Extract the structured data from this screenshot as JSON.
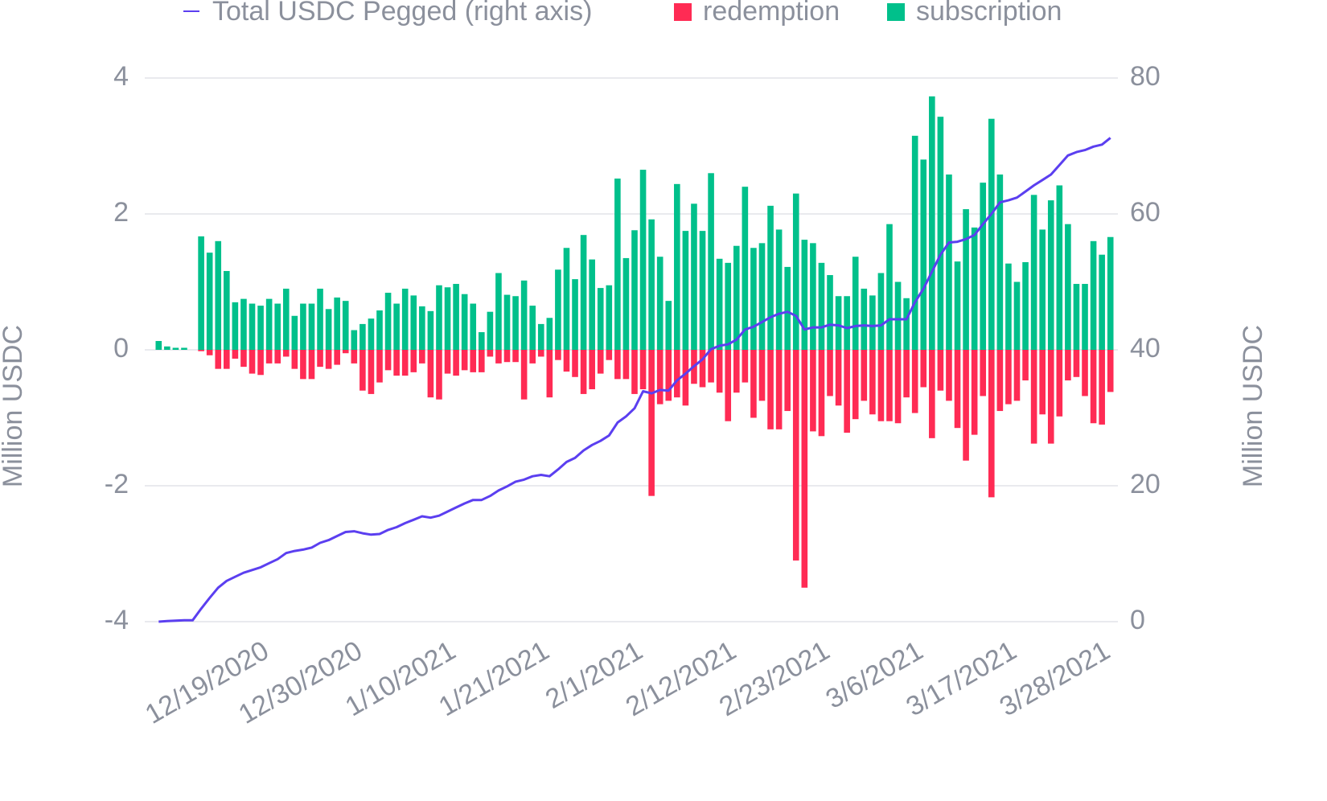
{
  "chart_data": {
    "type": "bar",
    "y_label": "Million USDC",
    "y2_label": "Million USDC",
    "ylim": [
      -4,
      4
    ],
    "yticks": [
      -4,
      -2,
      0,
      2,
      4
    ],
    "y2lim": [
      0,
      80
    ],
    "y2ticks": [
      0,
      20,
      40,
      60,
      80
    ],
    "grid": true,
    "legend": "top",
    "categories": [
      null,
      null,
      null,
      null,
      null,
      null,
      null,
      null,
      null,
      null,
      null,
      null,
      "12/19/2020",
      null,
      null,
      null,
      null,
      null,
      null,
      null,
      null,
      null,
      null,
      "12/30/2020",
      null,
      null,
      null,
      null,
      null,
      null,
      null,
      null,
      null,
      null,
      "1/10/2021",
      null,
      null,
      null,
      null,
      null,
      null,
      null,
      null,
      null,
      null,
      "1/21/2021",
      null,
      null,
      null,
      null,
      null,
      null,
      null,
      null,
      null,
      null,
      "2/1/2021",
      null,
      null,
      null,
      null,
      null,
      null,
      null,
      null,
      null,
      null,
      "2/12/2021",
      null,
      null,
      null,
      null,
      null,
      null,
      null,
      null,
      null,
      null,
      "2/23/2021",
      null,
      null,
      null,
      null,
      null,
      null,
      null,
      null,
      null,
      null,
      "3/6/2021",
      null,
      null,
      null,
      null,
      null,
      null,
      null,
      null,
      null,
      null,
      "3/17/2021",
      null,
      null,
      null,
      null,
      null,
      null,
      null,
      null,
      null,
      null,
      "3/28/2021",
      null
    ],
    "series": [
      {
        "name": "Total USDC Pegged (right axis)",
        "type": "line",
        "axis": "y2",
        "color": "#5b3ff0",
        "values": [
          0,
          0.1,
          0.15,
          0.2,
          0.2,
          1.9,
          3.5,
          5.0,
          6.0,
          6.6,
          7.2,
          7.6,
          8.0,
          8.6,
          9.2,
          10.1,
          10.4,
          10.6,
          10.9,
          11.6,
          12.0,
          12.6,
          13.2,
          13.3,
          13.0,
          12.8,
          12.9,
          13.5,
          13.9,
          14.5,
          15.0,
          15.5,
          15.3,
          15.6,
          16.2,
          16.8,
          17.4,
          17.9,
          17.9,
          18.5,
          19.3,
          19.9,
          20.6,
          20.9,
          21.4,
          21.6,
          21.4,
          22.4,
          23.5,
          24.1,
          25.2,
          26.0,
          26.6,
          27.4,
          29.3,
          30.2,
          31.4,
          33.9,
          33.6,
          34.1,
          34.0,
          35.5,
          36.5,
          37.6,
          38.6,
          40.1,
          40.6,
          40.8,
          41.5,
          43.0,
          43.4,
          44.1,
          44.8,
          45.3,
          45.6,
          45.0,
          43.0,
          43.3,
          43.3,
          43.7,
          43.6,
          43.2,
          43.5,
          43.6,
          43.5,
          43.6,
          44.5,
          44.5,
          44.5,
          47.0,
          49.0,
          51.5,
          54.0,
          55.8,
          55.9,
          56.3,
          56.9,
          58.5,
          60.0,
          61.7,
          62.0,
          62.4,
          63.3,
          64.2,
          65.0,
          65.8,
          67.2,
          68.6,
          69.1,
          69.4,
          69.9,
          70.2,
          71.2
        ]
      },
      {
        "name": "redemption",
        "type": "bar",
        "color": "#ff2b54",
        "values": [
          0,
          0,
          0,
          0,
          0,
          -0.02,
          -0.08,
          -0.28,
          -0.28,
          -0.13,
          -0.25,
          -0.35,
          -0.37,
          -0.2,
          -0.2,
          -0.1,
          -0.28,
          -0.43,
          -0.43,
          -0.25,
          -0.28,
          -0.22,
          -0.05,
          -0.2,
          -0.6,
          -0.65,
          -0.48,
          -0.3,
          -0.38,
          -0.38,
          -0.33,
          -0.2,
          -0.7,
          -0.73,
          -0.35,
          -0.38,
          -0.3,
          -0.33,
          -0.33,
          -0.1,
          -0.2,
          -0.18,
          -0.18,
          -0.73,
          -0.2,
          -0.1,
          -0.7,
          -0.15,
          -0.32,
          -0.4,
          -0.65,
          -0.58,
          -0.35,
          -0.15,
          -0.43,
          -0.43,
          -0.65,
          -0.58,
          -2.15,
          -0.8,
          -0.75,
          -0.7,
          -0.82,
          -0.5,
          -0.55,
          -0.48,
          -0.63,
          -1.05,
          -0.63,
          -0.48,
          -1.0,
          -0.75,
          -1.17,
          -1.17,
          -0.9,
          -3.1,
          -3.5,
          -1.2,
          -1.27,
          -0.68,
          -0.82,
          -1.22,
          -1.02,
          -0.75,
          -0.95,
          -1.05,
          -1.05,
          -1.08,
          -0.7,
          -0.93,
          -0.55,
          -1.3,
          -0.6,
          -0.75,
          -1.15,
          -1.63,
          -1.25,
          -0.68,
          -2.17,
          -0.9,
          -0.8,
          -0.75,
          -0.45,
          -1.38,
          -0.95,
          -1.38,
          -0.98,
          -0.45,
          -0.4,
          -0.68,
          -1.08,
          -1.1,
          -0.62
        ]
      },
      {
        "name": "subscription",
        "type": "bar",
        "color": "#00c08b",
        "values": [
          0.13,
          0.05,
          0.03,
          0.03,
          0,
          1.67,
          1.43,
          1.6,
          1.16,
          0.7,
          0.75,
          0.68,
          0.65,
          0.75,
          0.68,
          0.9,
          0.5,
          0.68,
          0.68,
          0.9,
          0.6,
          0.77,
          0.72,
          0.29,
          0.38,
          0.46,
          0.58,
          0.84,
          0.68,
          0.9,
          0.8,
          0.64,
          0.57,
          0.95,
          0.92,
          0.97,
          0.82,
          0.68,
          0.26,
          0.56,
          1.13,
          0.81,
          0.79,
          1.02,
          0.65,
          0.38,
          0.47,
          1.18,
          1.5,
          1.04,
          1.69,
          1.33,
          0.91,
          0.95,
          2.52,
          1.35,
          1.76,
          2.65,
          1.92,
          1.37,
          0.72,
          2.44,
          1.75,
          2.15,
          1.75,
          2.6,
          1.34,
          1.28,
          1.53,
          2.4,
          1.5,
          1.57,
          2.12,
          1.77,
          1.22,
          2.3,
          1.62,
          1.57,
          1.28,
          1.1,
          0.79,
          0.79,
          1.37,
          0.9,
          0.8,
          1.13,
          1.85,
          1.0,
          0.76,
          3.15,
          2.8,
          3.73,
          3.43,
          2.58,
          1.3,
          2.07,
          1.8,
          2.46,
          3.4,
          2.58,
          1.27,
          1.0,
          1.29,
          2.28,
          1.77,
          2.2,
          2.42,
          1.85,
          0.97,
          0.97,
          1.6,
          1.4,
          1.66
        ]
      }
    ]
  }
}
